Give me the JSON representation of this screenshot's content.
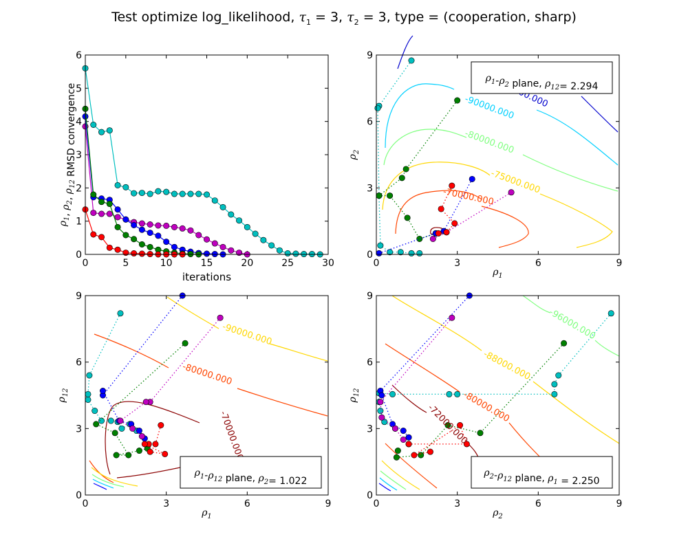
{
  "figure": {
    "title_prefix": "Test optimize log_likelihood, ",
    "tau1": "τ",
    "tau1_sub": "1",
    "tau1_val": " = 3, ",
    "tau2": "τ",
    "tau2_sub": "2",
    "tau2_val": " = 3, type = (cooperation, sharp)"
  },
  "chart_data": [
    {
      "panel": "top-left",
      "type": "line",
      "xlabel": "iterations",
      "ylabel": "ρ1, ρ2, ρ12 RMSD convergence",
      "xlim": [
        0,
        30
      ],
      "ylim": [
        0,
        6
      ],
      "xticks": [
        "0",
        "5",
        "10",
        "15",
        "20",
        "25",
        "30"
      ],
      "yticks": [
        "0",
        "1",
        "2",
        "3",
        "4",
        "5",
        "6"
      ],
      "series": [
        {
          "color": "#00bfbf",
          "x": [
            0,
            1,
            2,
            3,
            4,
            5,
            6,
            7,
            8,
            9,
            10,
            11,
            12,
            13,
            14,
            15,
            16,
            17,
            18,
            19,
            20,
            21,
            22,
            23,
            24,
            25,
            26,
            27,
            28,
            29
          ],
          "y": [
            5.6,
            3.9,
            3.68,
            3.73,
            2.08,
            2.02,
            1.84,
            1.85,
            1.82,
            1.9,
            1.88,
            1.82,
            1.82,
            1.82,
            1.82,
            1.8,
            1.62,
            1.42,
            1.2,
            1.02,
            0.82,
            0.62,
            0.43,
            0.27,
            0.12,
            0.03,
            0.02,
            0.01,
            0.01,
            0.0
          ]
        },
        {
          "color": "#bf00bf",
          "x": [
            0,
            1,
            2,
            3,
            4,
            5,
            6,
            7,
            8,
            9,
            10,
            11,
            12,
            13,
            14,
            15,
            16,
            17,
            18,
            19,
            20
          ],
          "y": [
            3.85,
            1.25,
            1.22,
            1.22,
            1.12,
            1.05,
            0.97,
            0.93,
            0.9,
            0.87,
            0.86,
            0.82,
            0.78,
            0.72,
            0.58,
            0.45,
            0.33,
            0.22,
            0.12,
            0.05,
            0.0
          ]
        },
        {
          "color": "#0000ff",
          "x": [
            0,
            1,
            2,
            3,
            4,
            5,
            6,
            7,
            8,
            9,
            10,
            11,
            12,
            13,
            14,
            15,
            16,
            17
          ],
          "y": [
            4.15,
            1.72,
            1.68,
            1.64,
            1.35,
            1.05,
            0.88,
            0.74,
            0.65,
            0.56,
            0.38,
            0.22,
            0.14,
            0.08,
            0.04,
            0.02,
            0.01,
            0.0
          ]
        },
        {
          "color": "#008000",
          "x": [
            0,
            1,
            2,
            3,
            4,
            5,
            6,
            7,
            8,
            9,
            10,
            11,
            12,
            13,
            14
          ],
          "y": [
            4.38,
            1.8,
            1.58,
            1.52,
            0.82,
            0.58,
            0.46,
            0.3,
            0.22,
            0.14,
            0.09,
            0.05,
            0.02,
            0.01,
            0.0
          ]
        },
        {
          "color": "#ff0000",
          "x": [
            0,
            1,
            2,
            3,
            4,
            5,
            6,
            7,
            8,
            9,
            10,
            11,
            12
          ],
          "y": [
            1.35,
            0.6,
            0.52,
            0.2,
            0.14,
            0.05,
            0.03,
            0.02,
            0.01,
            0.0,
            0.0,
            0.0,
            0.0
          ]
        }
      ]
    },
    {
      "panel": "top-right",
      "type": "line",
      "xlabel": "ρ1",
      "ylabel": "ρ2",
      "xlim": [
        0,
        9
      ],
      "ylim": [
        0,
        9
      ],
      "xticks": [
        "0",
        "3",
        "6",
        "9"
      ],
      "yticks": [
        "0",
        "3",
        "6",
        "9"
      ],
      "legend_text": "ρ1-ρ2 plane, ρ12= 2.294",
      "legend_placement": "top-right",
      "contour_labels": [
        "-85000.000",
        "-90000.000",
        "-80000.000",
        "-75000.000",
        "-70000.000"
      ]
    },
    {
      "panel": "bottom-left",
      "type": "line",
      "xlabel": "ρ1",
      "ylabel": "ρ12",
      "xlim": [
        0,
        9
      ],
      "ylim": [
        0,
        9
      ],
      "xticks": [
        "0",
        "3",
        "6",
        "9"
      ],
      "yticks": [
        "0",
        "3",
        "6",
        "9"
      ],
      "legend_text": "ρ1-ρ12 plane, ρ2= 1.022",
      "legend_placement": "bottom-right",
      "contour_labels": [
        "-90000.000",
        "-80000.000",
        "-70000.000"
      ]
    },
    {
      "panel": "bottom-right",
      "type": "line",
      "xlabel": "ρ2",
      "ylabel": "ρ12",
      "xlim": [
        0,
        9
      ],
      "ylim": [
        0,
        9
      ],
      "xticks": [
        "0",
        "3",
        "6",
        "9"
      ],
      "yticks": [
        "0",
        "3",
        "6",
        "9"
      ],
      "legend_text": "ρ2-ρ12 plane, ρ1 = 2.250",
      "legend_placement": "bottom-right",
      "contour_labels": [
        "-96000.000",
        "-88000.000",
        "-80000.000",
        "-72000.000"
      ]
    }
  ],
  "paths": {
    "tr": [
      {
        "color": "#00bfbf",
        "pts": [
          [
            1.3,
            8.75
          ],
          [
            0.1,
            6.7
          ],
          [
            0.05,
            6.6
          ],
          [
            0.1,
            2.65
          ],
          [
            0.15,
            0.4
          ],
          [
            0.5,
            0.1
          ],
          [
            0.9,
            0.1
          ],
          [
            1.3,
            0.05
          ],
          [
            1.6,
            0.05
          ]
        ]
      },
      {
        "color": "#008000",
        "pts": [
          [
            3,
            6.95
          ],
          [
            1.1,
            3.85
          ],
          [
            0.95,
            3.45
          ],
          [
            0.1,
            2.65
          ],
          [
            0.5,
            2.65
          ],
          [
            1.15,
            1.65
          ],
          [
            1.6,
            0.7
          ],
          [
            2.2,
            0.95
          ]
        ]
      },
      {
        "color": "#0000ff",
        "pts": [
          [
            3.55,
            3.4
          ],
          [
            2.5,
            1.05
          ],
          [
            2.2,
            0.95
          ],
          [
            0.1,
            0.05
          ]
        ]
      },
      {
        "color": "#bf00bf",
        "pts": [
          [
            5,
            2.8
          ],
          [
            2.6,
            1.0
          ],
          [
            2.1,
            0.7
          ]
        ]
      },
      {
        "color": "#ff0000",
        "pts": [
          [
            2.8,
            3.1
          ],
          [
            2.4,
            2.05
          ],
          [
            2.9,
            1.4
          ],
          [
            2.6,
            1.0
          ],
          [
            2.3,
            0.95
          ]
        ]
      }
    ],
    "bl": [
      {
        "color": "#00bfbf",
        "pts": [
          [
            1.3,
            8.2
          ],
          [
            0.15,
            5.4
          ],
          [
            0.1,
            4.55
          ],
          [
            0.1,
            4.3
          ],
          [
            0.35,
            3.8
          ],
          [
            0.6,
            3.35
          ],
          [
            0.95,
            3.35
          ],
          [
            1.2,
            3.3
          ],
          [
            1.35,
            3.0
          ],
          [
            1.65,
            3.2
          ],
          [
            1.9,
            2.9
          ]
        ]
      },
      {
        "color": "#0000ff",
        "pts": [
          [
            3.6,
            9
          ],
          [
            0.65,
            4.5
          ],
          [
            0.65,
            4.7
          ],
          [
            1.25,
            3.35
          ],
          [
            1.7,
            3.2
          ],
          [
            2.0,
            2.9
          ],
          [
            2.2,
            2.55
          ]
        ]
      },
      {
        "color": "#008000",
        "pts": [
          [
            3.7,
            6.85
          ],
          [
            0.4,
            3.2
          ],
          [
            1.1,
            2.8
          ],
          [
            1.6,
            1.8
          ],
          [
            1.15,
            1.8
          ],
          [
            2.0,
            2.0
          ],
          [
            2.3,
            2.1
          ]
        ]
      },
      {
        "color": "#bf00bf",
        "pts": [
          [
            5,
            8
          ],
          [
            2.4,
            4.2
          ],
          [
            2.25,
            4.2
          ],
          [
            1.3,
            3.35
          ],
          [
            1.75,
            3.0
          ],
          [
            2.1,
            2.65
          ]
        ]
      },
      {
        "color": "#ff0000",
        "pts": [
          [
            2.8,
            3.15
          ],
          [
            2.6,
            2.3
          ],
          [
            2.35,
            2.3
          ],
          [
            2.4,
            1.95
          ],
          [
            2.95,
            1.85
          ],
          [
            2.2,
            2.3
          ]
        ]
      }
    ],
    "br": [
      {
        "color": "#00bfbf",
        "pts": [
          [
            8.7,
            8.2
          ],
          [
            6.75,
            5.4
          ],
          [
            6.6,
            5.0
          ],
          [
            6.6,
            4.55
          ],
          [
            3.0,
            4.55
          ],
          [
            2.7,
            4.55
          ],
          [
            0.6,
            4.55
          ],
          [
            0.1,
            4.6
          ],
          [
            0.1,
            4.2
          ],
          [
            0.15,
            3.8
          ],
          [
            0.3,
            3.3
          ],
          [
            0.7,
            3.0
          ]
        ]
      },
      {
        "color": "#0000ff",
        "pts": [
          [
            3.45,
            9
          ],
          [
            0.15,
            4.7
          ],
          [
            0.2,
            4.5
          ],
          [
            0.6,
            3.2
          ],
          [
            1.0,
            2.9
          ],
          [
            1.2,
            2.6
          ]
        ]
      },
      {
        "color": "#008000",
        "pts": [
          [
            6.95,
            6.85
          ],
          [
            3.85,
            2.8
          ],
          [
            2.65,
            3.15
          ],
          [
            1.65,
            1.8
          ],
          [
            0.75,
            1.7
          ],
          [
            0.8,
            2.0
          ]
        ]
      },
      {
        "color": "#bf00bf",
        "pts": [
          [
            2.8,
            8
          ],
          [
            0.15,
            4.2
          ],
          [
            0.2,
            3.5
          ],
          [
            0.7,
            3.0
          ],
          [
            1.0,
            2.5
          ],
          [
            1.2,
            2.3
          ]
        ]
      },
      {
        "color": "#ff0000",
        "pts": [
          [
            2.0,
            1.95
          ],
          [
            1.4,
            1.8
          ],
          [
            3.1,
            3.15
          ],
          [
            3.35,
            2.3
          ],
          [
            1.2,
            2.3
          ]
        ]
      }
    ]
  }
}
